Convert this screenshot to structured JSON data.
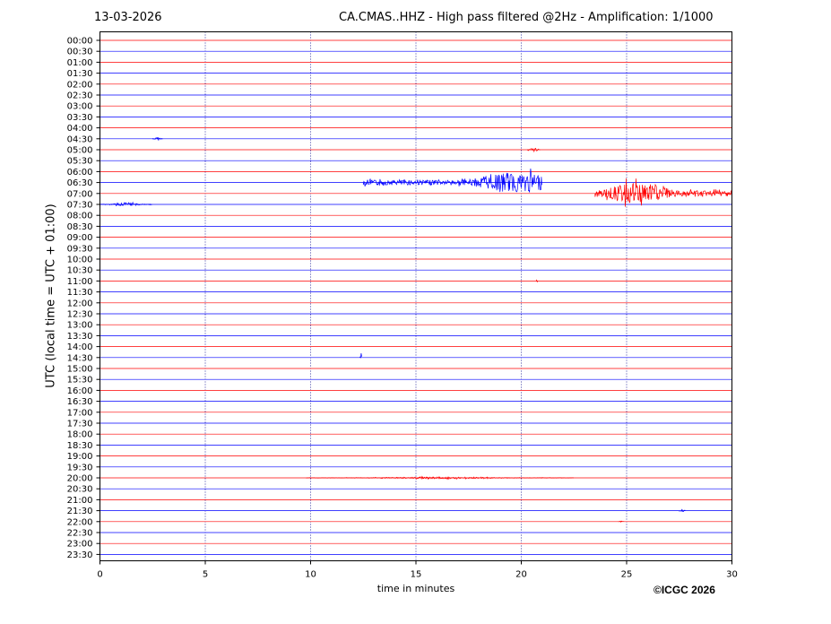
{
  "header": {
    "date": "13-03-2026",
    "title": "CA.CMAS..HHZ - High pass filtered @2Hz - Amplification: 1/1000"
  },
  "footer": {
    "copyright": "©ICGC 2026"
  },
  "colors": {
    "trace_a": "#ff0000",
    "trace_b": "#0000ff",
    "gridline": "#00008b",
    "frame": "#000000"
  },
  "chart_data": {
    "type": "line",
    "title": "CA.CMAS..HHZ - High pass filtered @2Hz - Amplification: 1/1000",
    "xlabel": "time in minutes",
    "ylabel": "UTC (local time = UTC + 01:00)",
    "xlim": [
      0,
      30
    ],
    "x_ticks": [
      0,
      5,
      10,
      15,
      20,
      25,
      30
    ],
    "grid": "vertical dotted lines at each x tick",
    "trace_color_pattern": "alternating red (:00 rows) and blue (:30 rows)",
    "rows": [
      "00:00",
      "00:30",
      "01:00",
      "01:30",
      "02:00",
      "02:30",
      "03:00",
      "03:30",
      "04:00",
      "04:30",
      "05:00",
      "05:30",
      "06:00",
      "06:30",
      "07:00",
      "07:30",
      "08:00",
      "08:30",
      "09:00",
      "09:30",
      "10:00",
      "10:30",
      "11:00",
      "11:30",
      "12:00",
      "12:30",
      "13:00",
      "13:30",
      "14:00",
      "14:30",
      "15:00",
      "15:30",
      "16:00",
      "16:30",
      "17:00",
      "17:30",
      "18:00",
      "18:30",
      "19:00",
      "19:30",
      "20:00",
      "20:30",
      "21:00",
      "21:30",
      "22:00",
      "22:30",
      "23:00",
      "23:30"
    ],
    "events": [
      {
        "row": "04:30",
        "start": 2.5,
        "end": 3.0,
        "amplitude": 2
      },
      {
        "row": "05:00",
        "start": 20.3,
        "end": 20.9,
        "amplitude": 3
      },
      {
        "row": "06:30",
        "start": 12.5,
        "end": 21.0,
        "peak": 19.8,
        "amplitude": 11
      },
      {
        "row": "07:00",
        "start": 23.5,
        "end": 30.0,
        "peak": 25.5,
        "amplitude": 12
      },
      {
        "row": "07:30",
        "start": 0.0,
        "end": 2.5,
        "amplitude": 2
      },
      {
        "row": "11:00",
        "start": 20.7,
        "end": 20.8,
        "amplitude": 3
      },
      {
        "row": "14:30",
        "start": 12.35,
        "end": 12.45,
        "amplitude": 5
      },
      {
        "row": "20:00",
        "start": 9.8,
        "end": 22.5,
        "amplitude": 1
      },
      {
        "row": "21:30",
        "start": 27.5,
        "end": 27.8,
        "amplitude": 2
      },
      {
        "row": "22:00",
        "start": 24.6,
        "end": 24.9,
        "amplitude": 1
      }
    ]
  }
}
